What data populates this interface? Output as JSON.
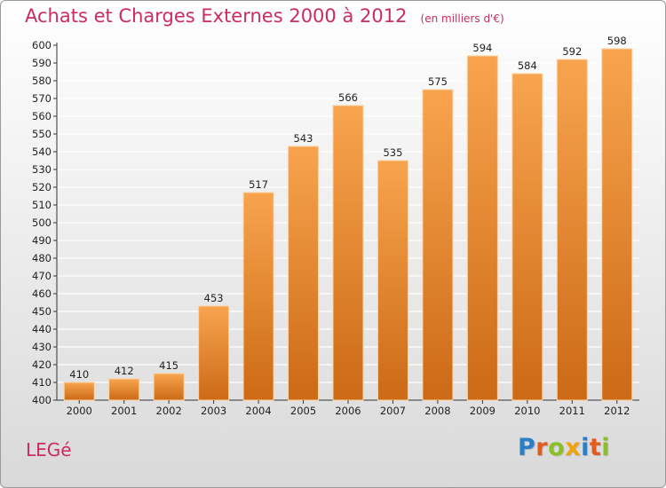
{
  "header": {
    "title": "Achats et Charges Externes 2000 à 2012",
    "unit_note": "(en milliers d'€)"
  },
  "commune": "LEGé",
  "logo": {
    "text": "Proxiti",
    "letters": [
      {
        "ch": "P",
        "color": "#2c7fc6"
      },
      {
        "ch": "r",
        "color": "#e25a1c"
      },
      {
        "ch": "o",
        "color": "#8cbf26"
      },
      {
        "ch": "x",
        "color": "#f2a20a"
      },
      {
        "ch": "i",
        "color": "#2c7fc6"
      },
      {
        "ch": "t",
        "color": "#e25a1c"
      },
      {
        "ch": "i",
        "color": "#8cbf26"
      }
    ]
  },
  "colors": {
    "title": "#cc2b63",
    "bar_top": "#f8a44e",
    "bar_bottom": "#cc6a16",
    "bar_edge": "#ffd1a0",
    "grid": "#ffffff",
    "axis": "#333333"
  },
  "chart_data": {
    "type": "bar",
    "title": "Achats et Charges Externes 2000 à 2012",
    "subtitle": "(en milliers d'€)",
    "categories": [
      "2000",
      "2001",
      "2002",
      "2003",
      "2004",
      "2005",
      "2006",
      "2007",
      "2008",
      "2009",
      "2010",
      "2011",
      "2012"
    ],
    "values": [
      410,
      412,
      415,
      453,
      517,
      543,
      566,
      535,
      575,
      594,
      584,
      592,
      598
    ],
    "ylim": [
      400,
      600
    ],
    "ytick_step": 10,
    "grid": true,
    "xlabel": "",
    "ylabel": ""
  }
}
